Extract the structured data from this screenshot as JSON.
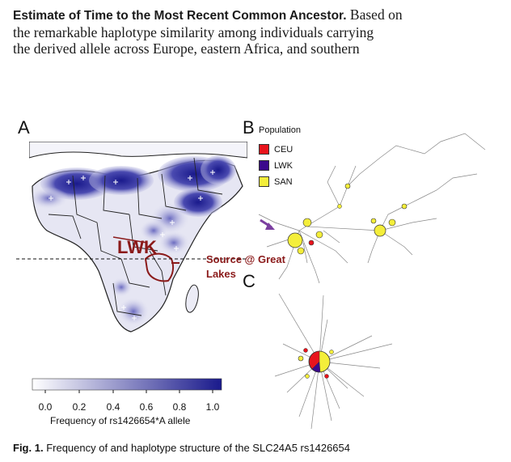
{
  "paragraph": {
    "lead": "Estimate of Time to the Most Recent Common Ancestor.",
    "line1_rest": "Based on",
    "line2": "the remarkable haplotype similarity among individuals carrying",
    "line3": "the derived allele across Europe, eastern Africa, and southern"
  },
  "figure": {
    "panel_a": "A",
    "panel_b": "B",
    "panel_c": "C",
    "legend": {
      "title": "Population",
      "items": [
        {
          "label": "CEU",
          "color": "#e8141c"
        },
        {
          "label": "LWK",
          "color": "#3b0a8c"
        },
        {
          "label": "SAN",
          "color": "#f4ee3a"
        }
      ]
    },
    "annotations": {
      "lwk": "LWK",
      "source_line1": "Source @ Great",
      "source_line2": "Lakes"
    },
    "scale": {
      "ticks": [
        "0.0",
        "0.2",
        "0.4",
        "0.6",
        "0.8",
        "1.0"
      ],
      "label": "Frequency of rs1426654*A allele",
      "color_low": "#ffffff",
      "color_high": "#1a1a8c"
    },
    "annotation_color": "#8b1a1a",
    "arrow_color": "#7b3fa0"
  },
  "caption": {
    "figno": "Fig. 1.",
    "text": "Frequency of and haplotype structure of the SLC24A5 rs1426654"
  }
}
